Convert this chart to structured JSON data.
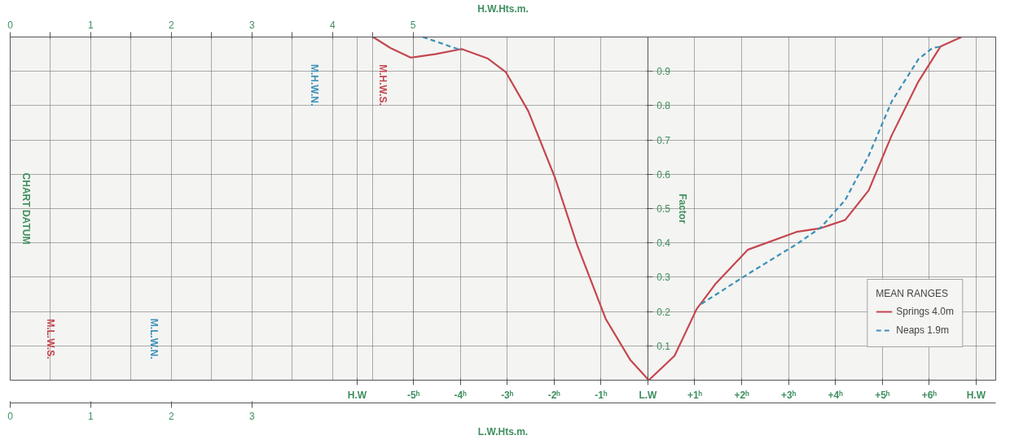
{
  "chart_data": {
    "type": "line",
    "xlim": [
      -13.6,
      7.42
    ],
    "xticks": [
      {
        "value": -6.2,
        "label": "H.W"
      },
      {
        "value": -5,
        "label": "-5ʰ"
      },
      {
        "value": -4,
        "label": "-4ʰ"
      },
      {
        "value": -3,
        "label": "-3ʰ"
      },
      {
        "value": -2,
        "label": "-2ʰ"
      },
      {
        "value": -1,
        "label": "-1ʰ"
      },
      {
        "value": 0,
        "label": "L.W"
      },
      {
        "value": 1,
        "label": "+1ʰ"
      },
      {
        "value": 2,
        "label": "+2ʰ"
      },
      {
        "value": 3,
        "label": "+3ʰ"
      },
      {
        "value": 4,
        "label": "+4ʰ"
      },
      {
        "value": 5,
        "label": "+5ʰ"
      },
      {
        "value": 6,
        "label": "+6ʰ"
      },
      {
        "value": 7,
        "label": "H.W"
      }
    ],
    "x2label": "H.W.Hts.m.",
    "x2lim": [
      0,
      12.23
    ],
    "x2ticks": [
      0,
      {
        "value": 0.5,
        "label": null
      },
      1,
      {
        "value": 1.5,
        "label": null
      },
      2,
      {
        "value": 2.5,
        "label": null
      },
      3,
      {
        "value": 3.5,
        "label": null
      },
      4,
      {
        "value": 4.5,
        "label": null
      },
      5
    ],
    "ylabel": "Factor",
    "ylim": [
      0,
      1
    ],
    "yticks": [
      0.1,
      0.2,
      0.3,
      0.4,
      0.5,
      0.6,
      0.7,
      0.8,
      0.9
    ],
    "grid": true,
    "legend": "bottom right",
    "legend_title": "MEAN RANGES",
    "series": [
      {
        "name": "Springs 4.0m",
        "color": "#c4474f",
        "line_style": "solid",
        "x": [
          -5.86,
          -5.49,
          -5.06,
          -4.54,
          -3.97,
          -3.41,
          -3.03,
          -2.55,
          -1.98,
          -1.51,
          -0.9,
          -0.38,
          0.02,
          0.57,
          1.04,
          1.44,
          2.13,
          3.17,
          3.69,
          4.21,
          4.71,
          5.2,
          5.77,
          6.24,
          6.69
        ],
        "values": [
          1.0,
          0.968,
          0.94,
          0.95,
          0.965,
          0.937,
          0.898,
          0.784,
          0.59,
          0.395,
          0.179,
          0.06,
          0.0,
          0.071,
          0.207,
          0.28,
          0.38,
          0.432,
          0.443,
          0.467,
          0.553,
          0.713,
          0.87,
          0.972,
          1.0
        ]
      },
      {
        "name": "Neaps 1.9m",
        "color": "#3a90b8",
        "line_style": "dashed",
        "x": [
          -4.8,
          -4.37,
          -3.97,
          0.5,
          1.14,
          2.13,
          3.17,
          3.69,
          4.21,
          4.71,
          5.2,
          5.77,
          6.07,
          6.24
        ],
        "values": [
          1.0,
          0.98,
          0.961,
          null,
          0.222,
          0.309,
          0.396,
          0.445,
          0.525,
          0.654,
          0.812,
          0.935,
          0.968,
          0.972
        ]
      }
    ],
    "annotations": [
      "CHART DATUM",
      "M.H.W.S.",
      "M.H.W.N.",
      "M.L.W.S.",
      "M.L.W.N.",
      "L.W.Hts.m.",
      "0",
      "1",
      "2",
      "3"
    ]
  }
}
